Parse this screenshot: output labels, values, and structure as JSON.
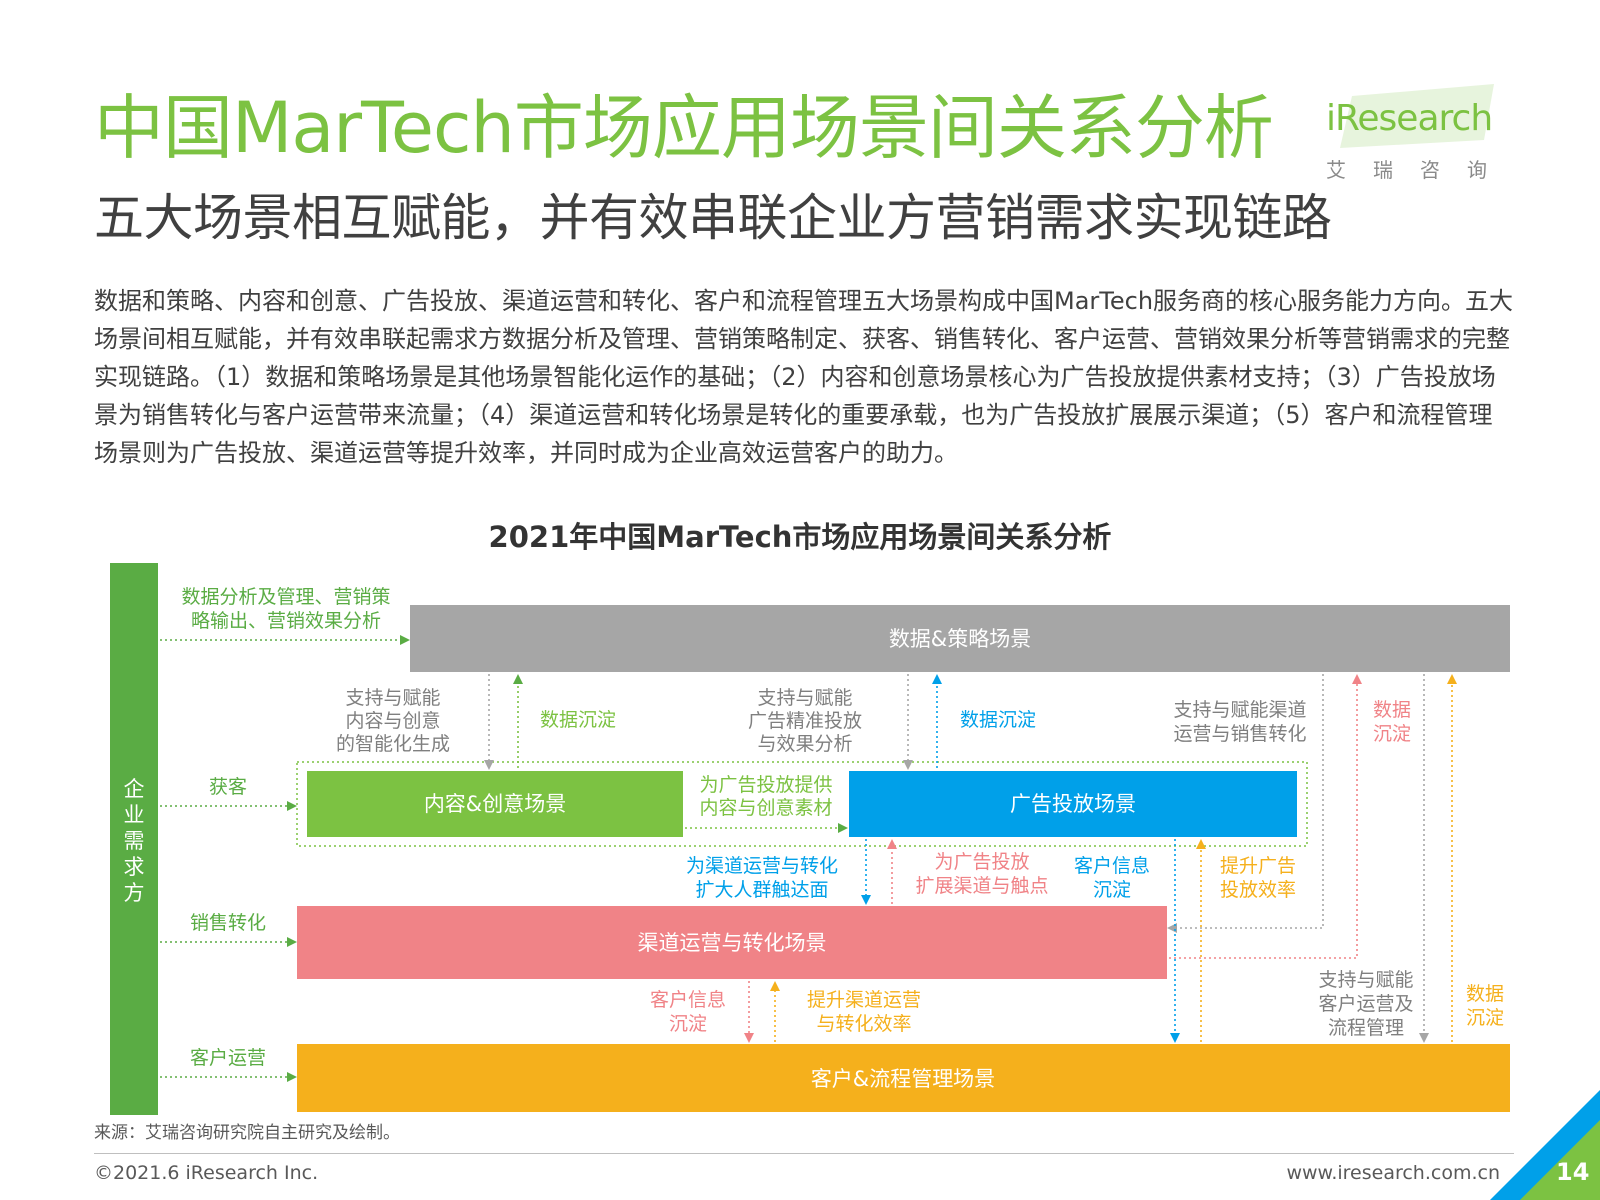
{
  "header": {
    "title": "中国MarTech市场应用场景间关系分析",
    "subtitle": "五大场景相互赋能，并有效串联企业方营销需求实现链路",
    "logo_word": "iResearch",
    "logo_cn": "艾瑞咨询"
  },
  "intro": "数据和策略、内容和创意、广告投放、渠道运营和转化、客户和流程管理五大场景构成中国MarTech服务商的核心服务能力方向。五大场景间相互赋能，并有效串联起需求方数据分析及管理、营销策略制定、获客、销售转化、客户运营、营销效果分析等营销需求的完整实现链路。（1）数据和策略场景是其他场景智能化运作的基础；（2）内容和创意场景核心为广告投放提供素材支持；（3）广告投放场景为销售转化与客户运营带来流量；（4）渠道运营和转化场景是转化的重要承载，也为广告投放扩展展示渠道；（5）客户和流程管理场景则为广告投放、渠道运营等提升效率，并同时成为企业高效运营客户的助力。",
  "diagram": {
    "title": "2021年中国MarTech市场应用场景间关系分析",
    "enterprise_label": [
      "企",
      "业",
      "需",
      "求",
      "方"
    ],
    "boxes": {
      "data_strategy": "数据&策略场景",
      "content": "内容&创意场景",
      "ad": "广告投放场景",
      "channel": "渠道运营与转化场景",
      "customer": "客户&流程管理场景"
    },
    "needs": {
      "data_analysis": [
        "数据分析及管理、营销策",
        "略输出、营销效果分析"
      ],
      "acquire": "获客",
      "sales": "销售转化",
      "ops": "客户运营"
    },
    "labels": {
      "support_content": [
        "支持与赋能",
        "内容与创意",
        "的智能化生成"
      ],
      "data_deposit_1": "数据沉淀",
      "support_ad": [
        "支持与赋能",
        "广告精准投放",
        "与效果分析"
      ],
      "data_deposit_2": "数据沉淀",
      "support_channel": [
        "支持与赋能渠道",
        "运营与销售转化"
      ],
      "data_deposit_3": [
        "数据",
        "沉淀"
      ],
      "content_for_ad": [
        "为广告投放提供",
        "内容与创意素材"
      ],
      "expand_reach": [
        "为渠道运营与转化",
        "扩大人群触达面"
      ],
      "expand_channel": [
        "为广告投放",
        "扩展渠道与触点"
      ],
      "customer_info_1": [
        "客户信息",
        "沉淀"
      ],
      "improve_ad": [
        "提升广告",
        "投放效率"
      ],
      "customer_info_2": [
        "客户信息",
        "沉淀"
      ],
      "improve_channel": [
        "提升渠道运营",
        "与转化效率"
      ],
      "support_ops": [
        "支持与赋能",
        "客户运营及",
        "流程管理"
      ],
      "data_deposit_4": [
        "数据",
        "沉淀"
      ]
    },
    "colors": {
      "green": "#7cc242",
      "dark_green": "#5aac44",
      "gray": "#a6a6a6",
      "blue": "#00a0e9",
      "pink": "#f08387",
      "orange": "#f5b01c",
      "gray_text": "#7f7f7f"
    }
  },
  "footer": {
    "source": "来源：艾瑞咨询研究院自主研究及绘制。",
    "copyright": "©2021.6 iResearch Inc.",
    "website": "www.iresearch.com.cn",
    "page": "14"
  }
}
